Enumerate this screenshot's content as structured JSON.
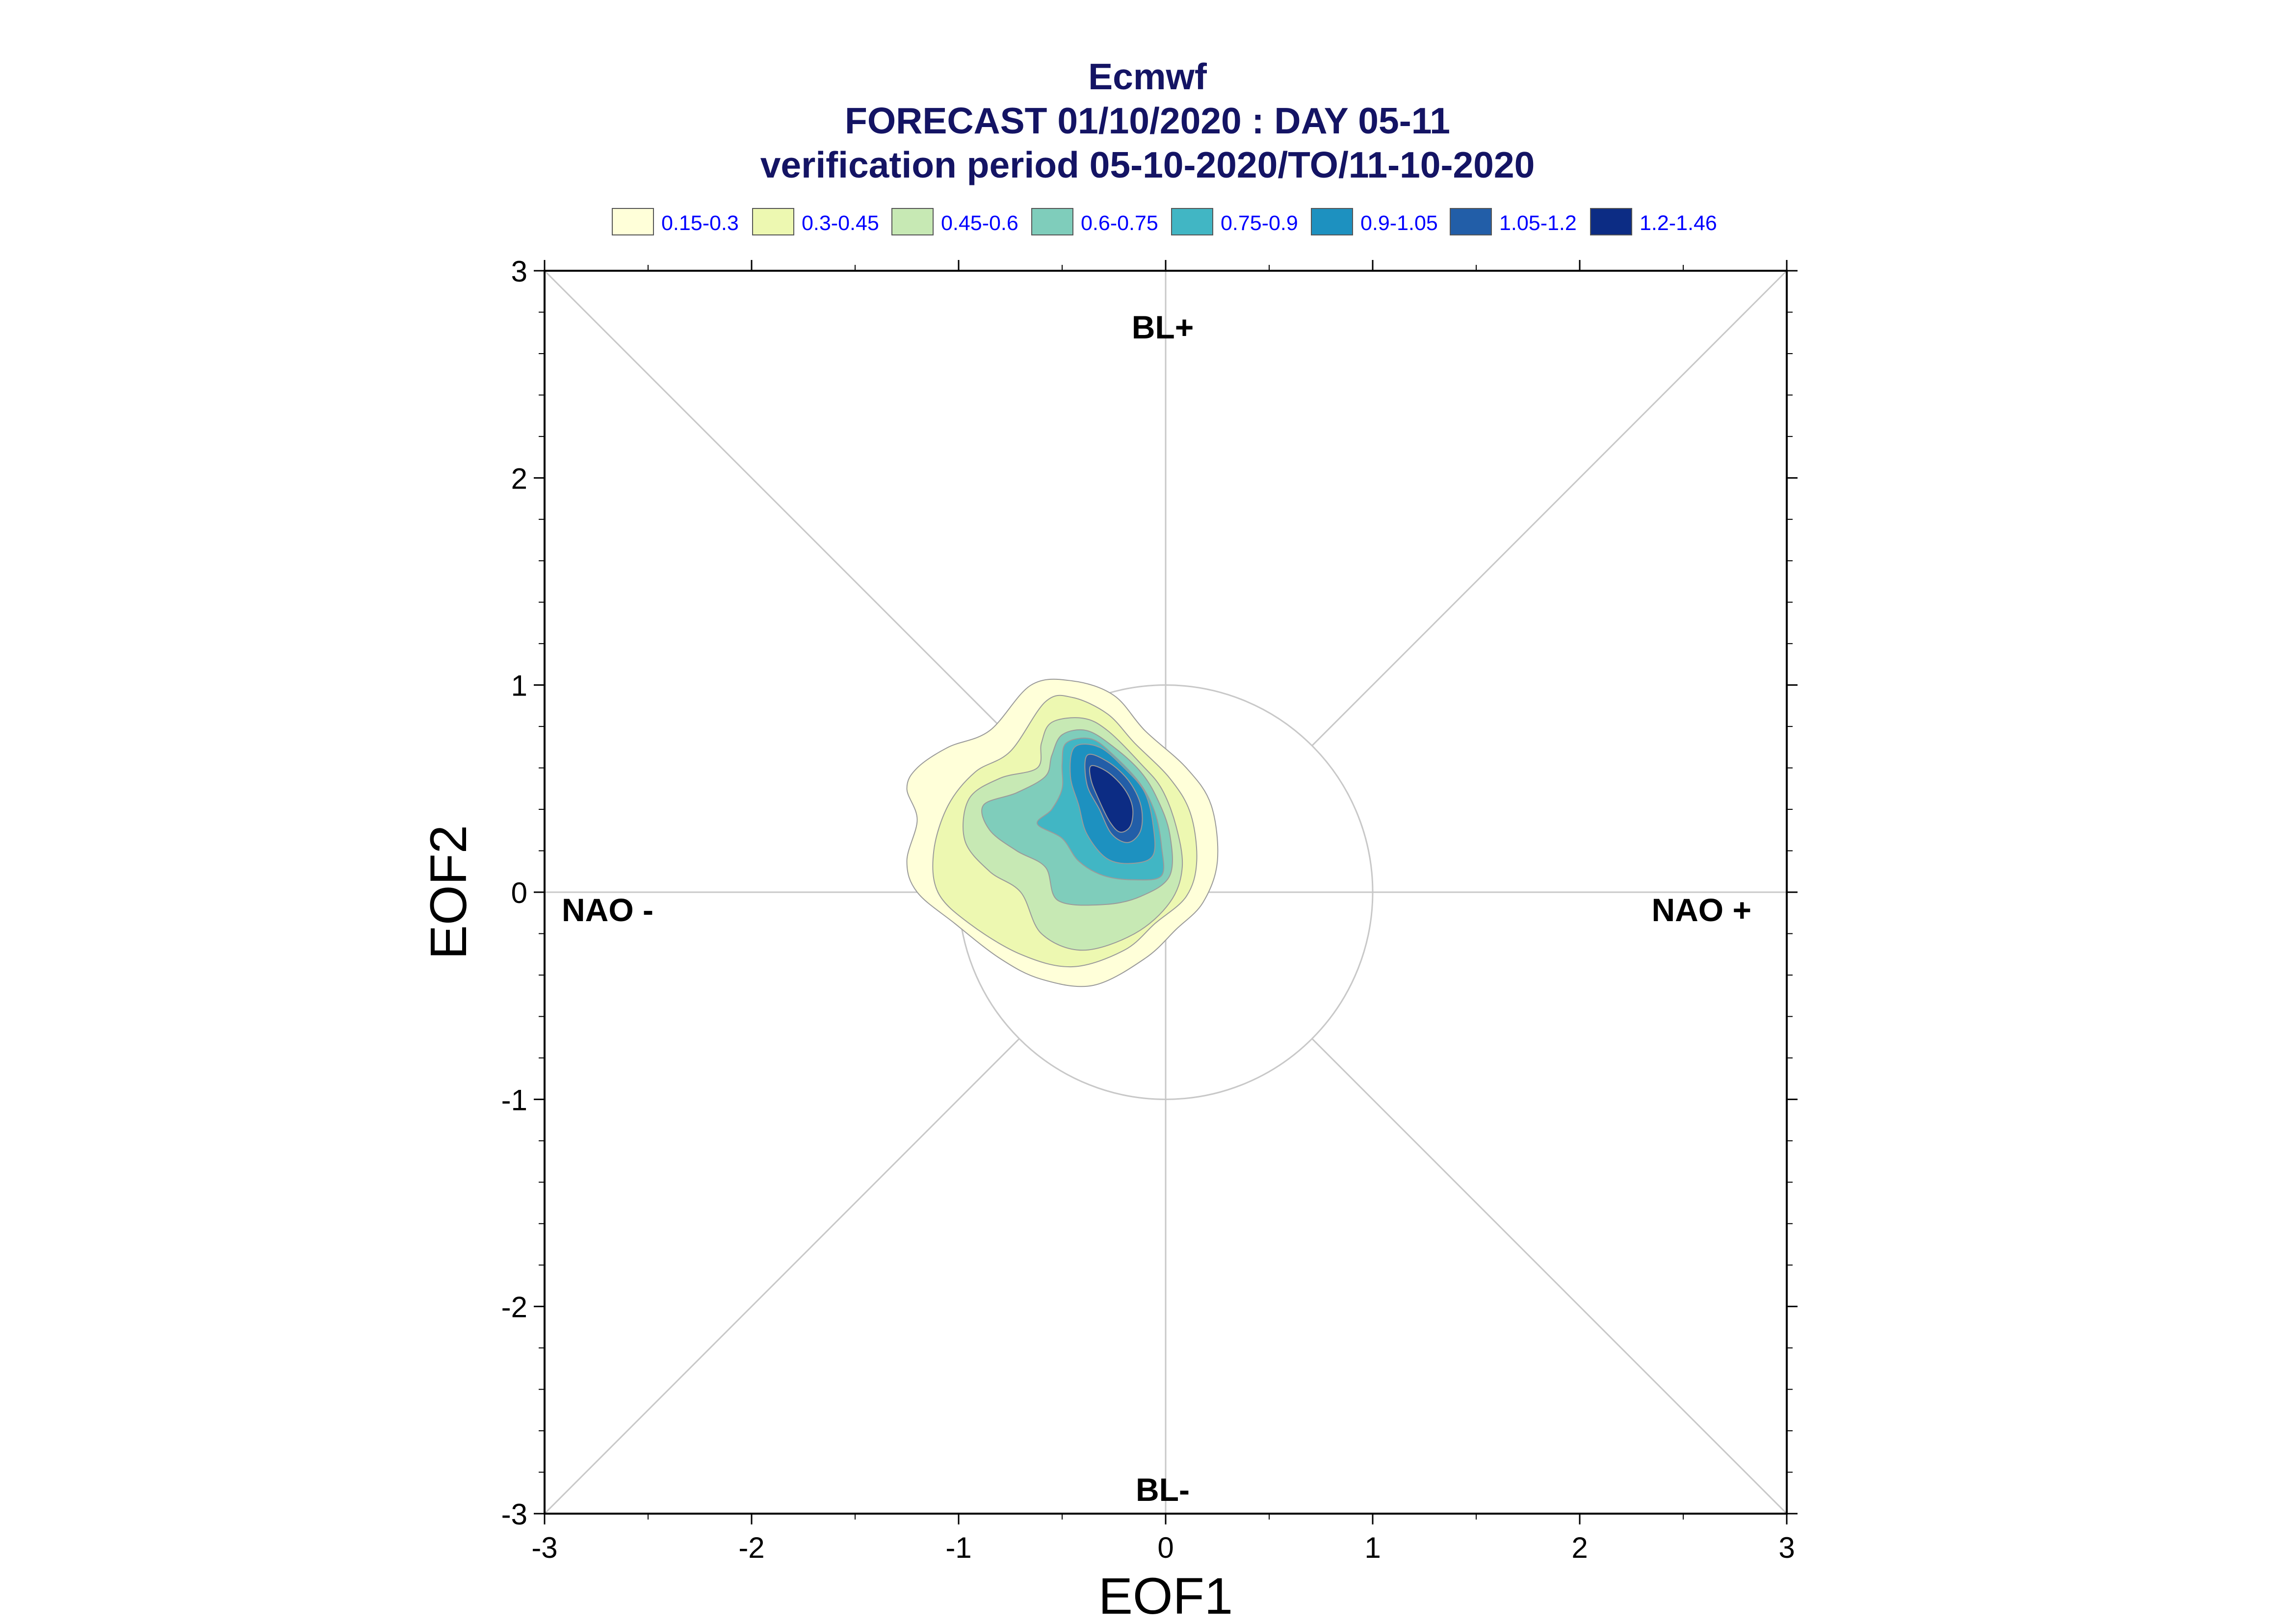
{
  "chart_data": {
    "type": "contour",
    "title": "Ecmwf",
    "subtitle": "FORECAST 01/10/2020 : DAY 05-11",
    "subtitle2": "verification period 05-10-2020/TO/11-10-2020",
    "xlabel": "EOF1",
    "ylabel": "EOF2",
    "xlim": [
      -3,
      3
    ],
    "ylim": [
      -3,
      3
    ],
    "xticks": [
      "-3",
      "-2",
      "-1",
      "0",
      "1",
      "2",
      "3"
    ],
    "yticks": [
      "-3",
      "-2",
      "-1",
      "0",
      "1",
      "2",
      "3"
    ],
    "reference_circle_radius": 1,
    "regime_labels": {
      "top": "BL+",
      "bottom": "BL-",
      "left": "NAO -",
      "right": "NAO +"
    },
    "legend": [
      {
        "label": "0.15-0.3",
        "color": "#ffffd9"
      },
      {
        "label": "0.3-0.45",
        "color": "#edf8b1"
      },
      {
        "label": "0.45-0.6",
        "color": "#c7e9b4"
      },
      {
        "label": "0.6-0.75",
        "color": "#7fcdbb"
      },
      {
        "label": "0.75-0.9",
        "color": "#41b6c4"
      },
      {
        "label": "0.9-1.05",
        "color": "#1d91c0"
      },
      {
        "label": "1.05-1.2",
        "color": "#225ea8"
      },
      {
        "label": "1.2-1.46",
        "color": "#0c2c84"
      }
    ],
    "contours": [
      {
        "level": "0.15-0.3",
        "points": [
          [
            -0.65,
            1.0
          ],
          [
            -0.45,
            1.02
          ],
          [
            -0.25,
            0.95
          ],
          [
            -0.1,
            0.78
          ],
          [
            0.1,
            0.6
          ],
          [
            0.22,
            0.42
          ],
          [
            0.25,
            0.15
          ],
          [
            0.18,
            -0.05
          ],
          [
            0.05,
            -0.18
          ],
          [
            -0.1,
            -0.32
          ],
          [
            -0.35,
            -0.45
          ],
          [
            -0.6,
            -0.42
          ],
          [
            -0.8,
            -0.32
          ],
          [
            -1.02,
            -0.15
          ],
          [
            -1.2,
            0.0
          ],
          [
            -1.25,
            0.15
          ],
          [
            -1.2,
            0.35
          ],
          [
            -1.25,
            0.5
          ],
          [
            -1.2,
            0.6
          ],
          [
            -1.05,
            0.7
          ],
          [
            -0.85,
            0.78
          ]
        ]
      },
      {
        "level": "0.3-0.45",
        "points": [
          [
            -0.58,
            0.92
          ],
          [
            -0.45,
            0.94
          ],
          [
            -0.28,
            0.86
          ],
          [
            -0.15,
            0.72
          ],
          [
            0.02,
            0.55
          ],
          [
            0.12,
            0.38
          ],
          [
            0.15,
            0.15
          ],
          [
            0.1,
            -0.02
          ],
          [
            -0.05,
            -0.15
          ],
          [
            -0.2,
            -0.28
          ],
          [
            -0.45,
            -0.36
          ],
          [
            -0.7,
            -0.3
          ],
          [
            -0.95,
            -0.15
          ],
          [
            -1.1,
            0.0
          ],
          [
            -1.12,
            0.2
          ],
          [
            -1.05,
            0.42
          ],
          [
            -0.92,
            0.58
          ],
          [
            -0.75,
            0.68
          ]
        ]
      },
      {
        "level": "0.45-0.6",
        "points": [
          [
            -0.55,
            0.82
          ],
          [
            -0.4,
            0.84
          ],
          [
            -0.28,
            0.78
          ],
          [
            -0.12,
            0.62
          ],
          [
            -0.02,
            0.5
          ],
          [
            0.05,
            0.32
          ],
          [
            0.08,
            0.12
          ],
          [
            0.02,
            -0.05
          ],
          [
            -0.15,
            -0.2
          ],
          [
            -0.4,
            -0.28
          ],
          [
            -0.6,
            -0.2
          ],
          [
            -0.7,
            0.0
          ],
          [
            -0.85,
            0.1
          ],
          [
            -0.97,
            0.25
          ],
          [
            -0.95,
            0.45
          ],
          [
            -0.8,
            0.55
          ],
          [
            -0.62,
            0.6
          ],
          [
            -0.6,
            0.72
          ]
        ]
      },
      {
        "level": "0.6-0.75",
        "points": [
          [
            -0.5,
            0.76
          ],
          [
            -0.38,
            0.78
          ],
          [
            -0.25,
            0.7
          ],
          [
            -0.12,
            0.58
          ],
          [
            -0.04,
            0.45
          ],
          [
            0.02,
            0.28
          ],
          [
            0.02,
            0.08
          ],
          [
            -0.12,
            -0.02
          ],
          [
            -0.3,
            -0.06
          ],
          [
            -0.52,
            -0.04
          ],
          [
            -0.58,
            0.12
          ],
          [
            -0.72,
            0.2
          ],
          [
            -0.85,
            0.3
          ],
          [
            -0.88,
            0.42
          ],
          [
            -0.72,
            0.48
          ],
          [
            -0.58,
            0.56
          ],
          [
            -0.55,
            0.66
          ]
        ]
      },
      {
        "level": "0.75-0.9",
        "points": [
          [
            -0.48,
            0.72
          ],
          [
            -0.36,
            0.74
          ],
          [
            -0.25,
            0.66
          ],
          [
            -0.12,
            0.52
          ],
          [
            -0.05,
            0.38
          ],
          [
            -0.02,
            0.22
          ],
          [
            -0.02,
            0.08
          ],
          [
            -0.15,
            0.06
          ],
          [
            -0.3,
            0.08
          ],
          [
            -0.42,
            0.15
          ],
          [
            -0.5,
            0.26
          ],
          [
            -0.62,
            0.33
          ],
          [
            -0.55,
            0.4
          ],
          [
            -0.5,
            0.5
          ],
          [
            -0.5,
            0.62
          ]
        ]
      },
      {
        "level": "0.9-1.05",
        "points": [
          [
            -0.44,
            0.7
          ],
          [
            -0.32,
            0.7
          ],
          [
            -0.2,
            0.6
          ],
          [
            -0.1,
            0.48
          ],
          [
            -0.06,
            0.32
          ],
          [
            -0.06,
            0.18
          ],
          [
            -0.15,
            0.14
          ],
          [
            -0.28,
            0.16
          ],
          [
            -0.38,
            0.28
          ],
          [
            -0.42,
            0.42
          ],
          [
            -0.46,
            0.56
          ]
        ]
      },
      {
        "level": "1.05-1.2",
        "points": [
          [
            -0.38,
            0.66
          ],
          [
            -0.28,
            0.63
          ],
          [
            -0.18,
            0.54
          ],
          [
            -0.12,
            0.42
          ],
          [
            -0.12,
            0.3
          ],
          [
            -0.18,
            0.24
          ],
          [
            -0.26,
            0.28
          ],
          [
            -0.32,
            0.4
          ],
          [
            -0.38,
            0.52
          ]
        ]
      },
      {
        "level": "1.2-1.46",
        "points": [
          [
            -0.36,
            0.61
          ],
          [
            -0.28,
            0.58
          ],
          [
            -0.2,
            0.5
          ],
          [
            -0.16,
            0.41
          ],
          [
            -0.17,
            0.32
          ],
          [
            -0.22,
            0.29
          ],
          [
            -0.27,
            0.34
          ],
          [
            -0.32,
            0.44
          ],
          [
            -0.36,
            0.54
          ]
        ]
      }
    ]
  }
}
